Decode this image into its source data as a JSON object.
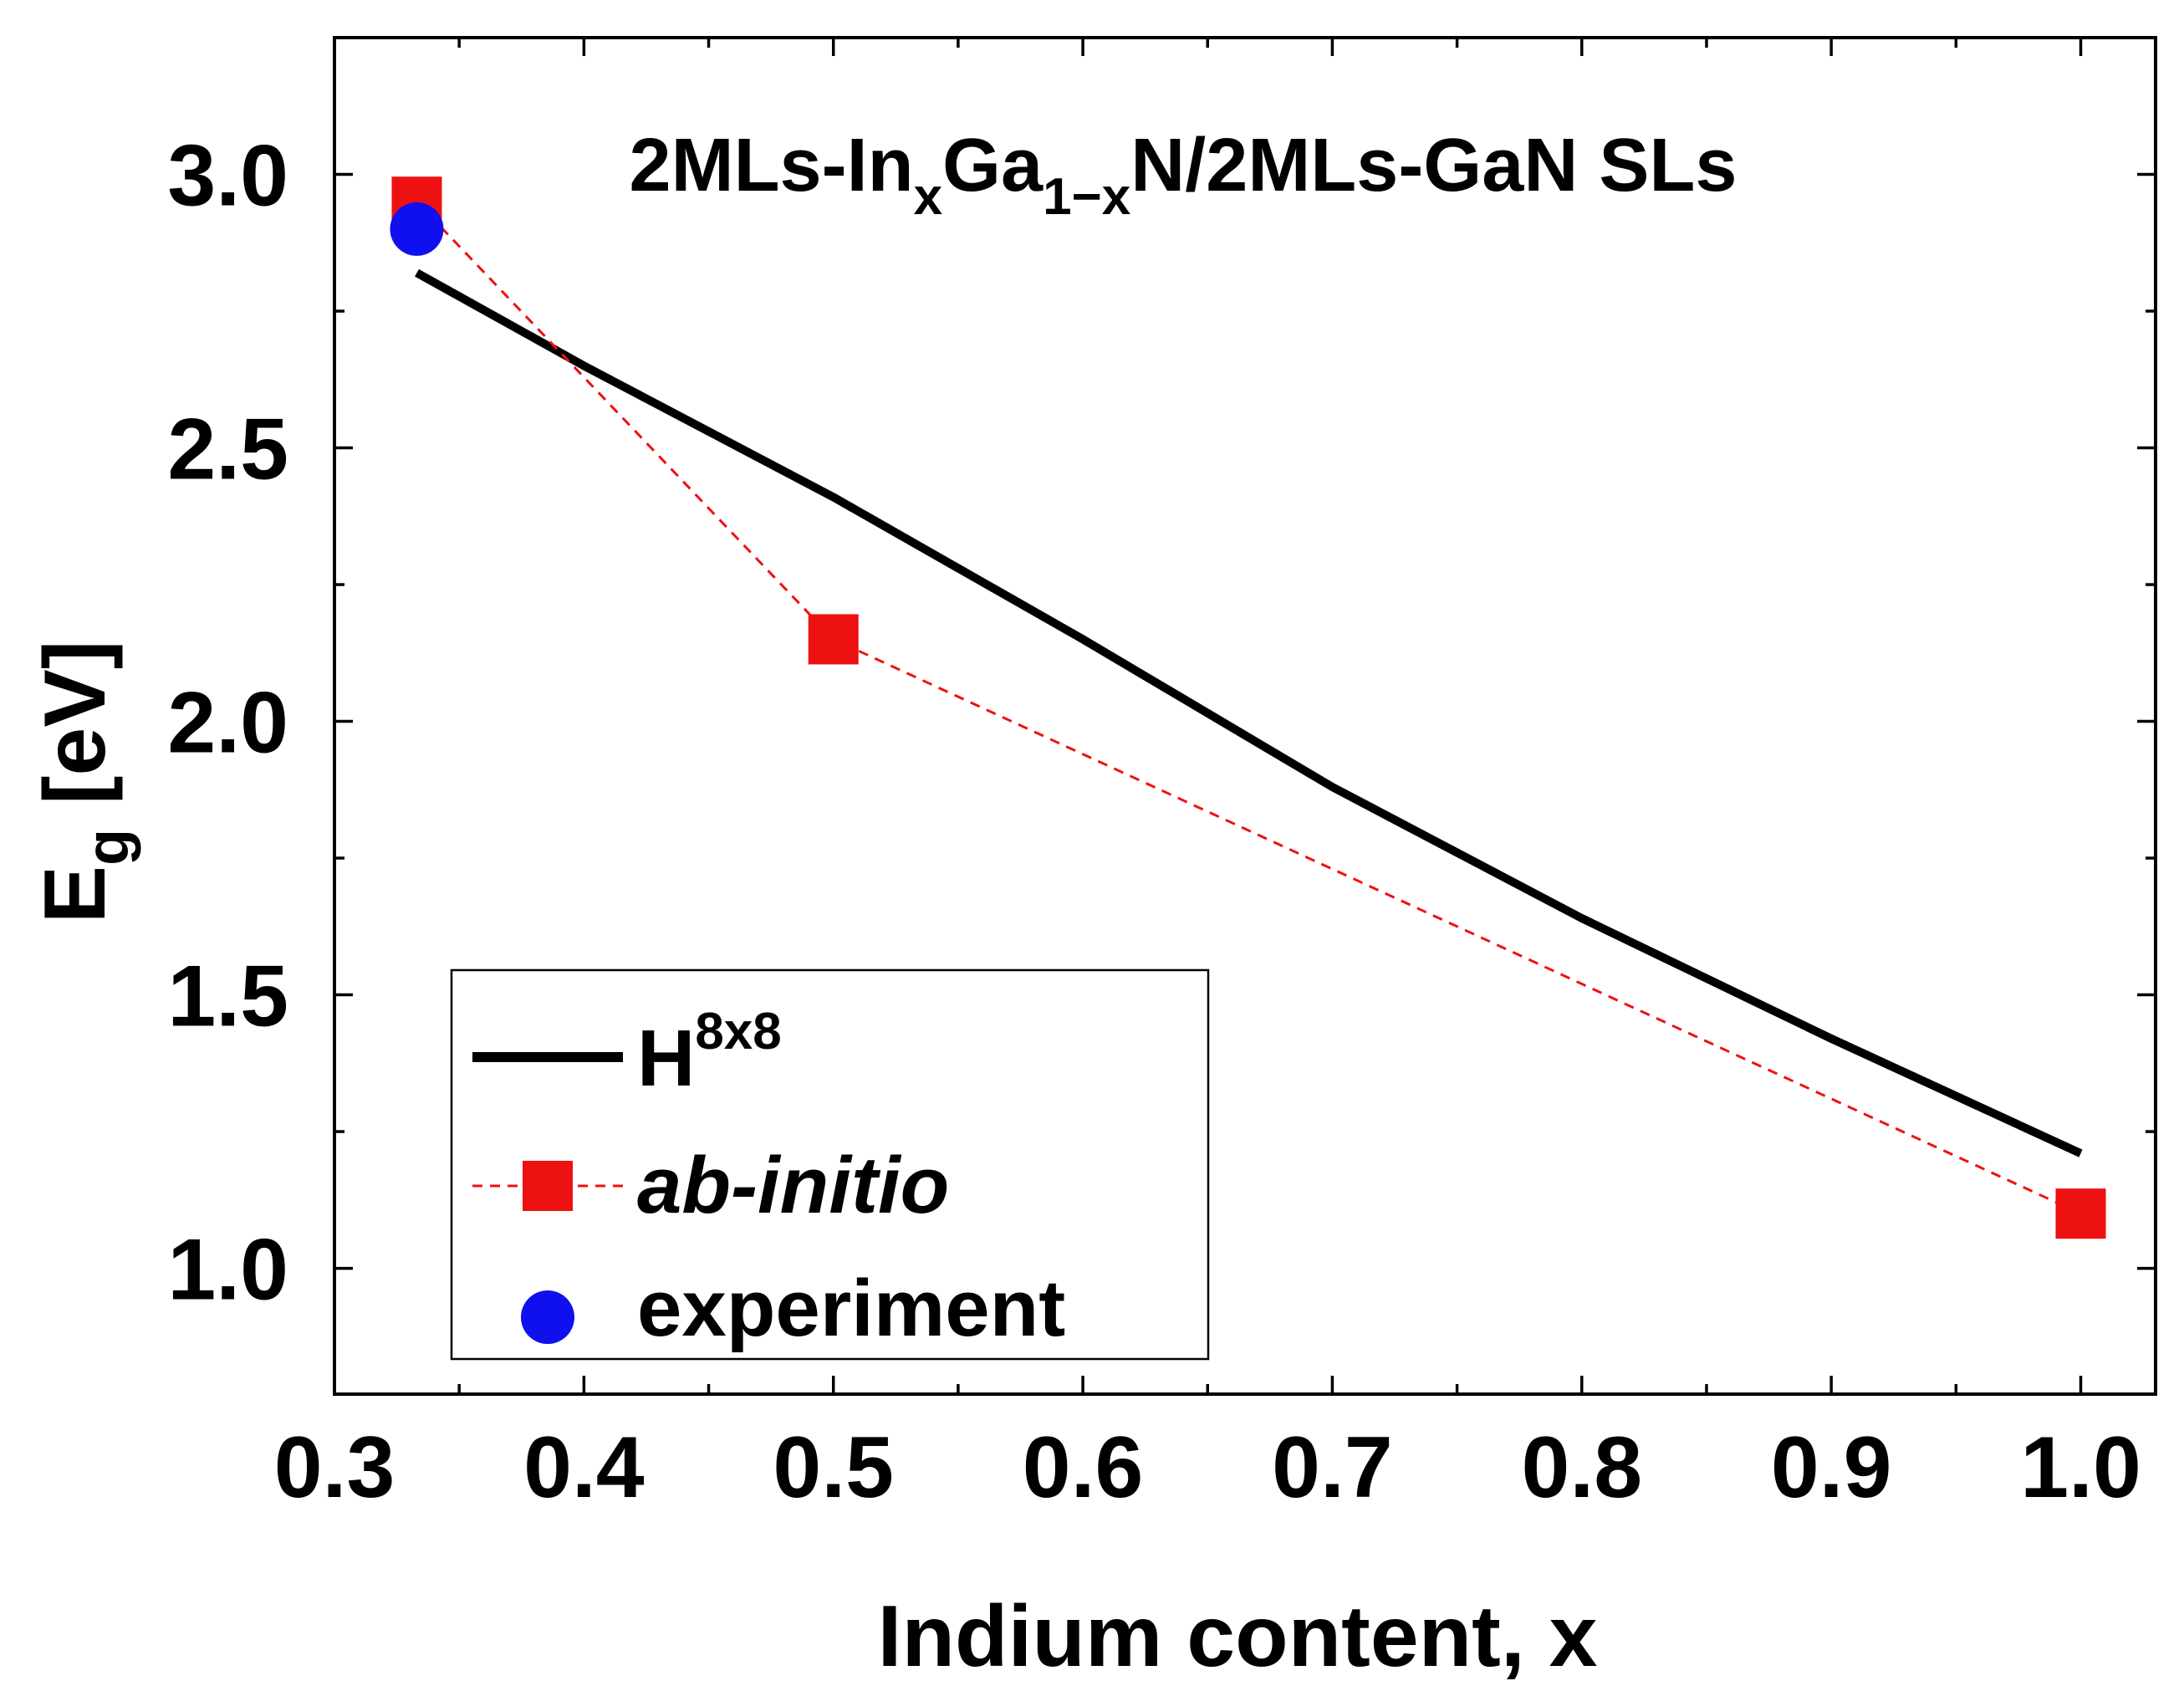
{
  "chart_data": {
    "type": "line",
    "title": "",
    "annotation": {
      "prefix": "2MLs-In",
      "sub1": "x",
      "mid": "Ga",
      "sub2": "1−x",
      "suffix": "N/2MLs-GaN SLs"
    },
    "xlabel": "Indium content, x",
    "ylabel": {
      "main": "E",
      "sub": "g",
      "unit": " [eV]"
    },
    "xlim": [
      0.3,
      1.03
    ],
    "ylim": [
      0.77,
      3.25
    ],
    "x_ticks": [
      0.3,
      0.4,
      0.5,
      0.6,
      0.7,
      0.8,
      0.9,
      1.0
    ],
    "x_tick_labels": [
      "0.3",
      "0.4",
      "0.5",
      "0.6",
      "0.7",
      "0.8",
      "0.9",
      "1.0"
    ],
    "y_ticks": [
      1.0,
      1.5,
      2.0,
      2.5,
      3.0
    ],
    "y_tick_labels": [
      "1.0",
      "1.5",
      "2.0",
      "2.5",
      "3.0"
    ],
    "series": [
      {
        "name": "H",
        "name_sup": "8x8",
        "style": "solid-line",
        "color": "#000000",
        "x": [
          0.333,
          0.4,
          0.5,
          0.6,
          0.7,
          0.8,
          0.9,
          1.0
        ],
        "y": [
          2.82,
          2.65,
          2.41,
          2.15,
          1.88,
          1.64,
          1.42,
          1.21
        ]
      },
      {
        "name": "ab-initio",
        "style": "dashed-line-square",
        "color": "#ee1111",
        "x": [
          0.333,
          0.5,
          1.0
        ],
        "y": [
          2.95,
          2.15,
          1.1
        ]
      },
      {
        "name": "experiment",
        "style": "circle",
        "color": "#1010ee",
        "x": [
          0.333
        ],
        "y": [
          2.9
        ]
      }
    ],
    "legend_position": "bottom-left"
  }
}
